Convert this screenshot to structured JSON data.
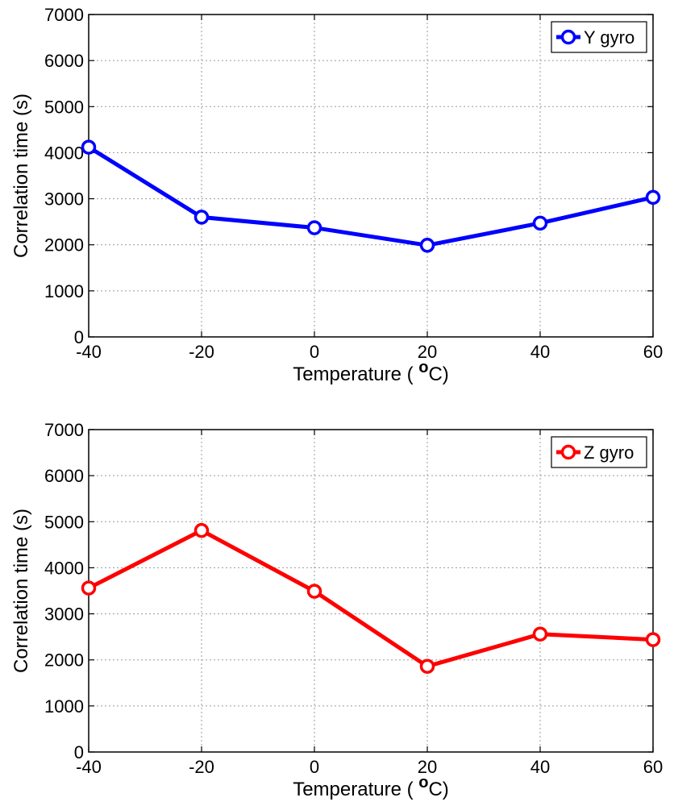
{
  "chart_data": [
    {
      "type": "line",
      "x": [
        -40,
        -20,
        0,
        20,
        40,
        60
      ],
      "series": [
        {
          "name": "Y gyro",
          "color": "#0000ff",
          "values": [
            4120,
            2600,
            2370,
            1990,
            2470,
            3030
          ]
        }
      ],
      "xlabel_prefix": "Temperature ( ",
      "xlabel_sup": "o",
      "xlabel_suffix": "C)",
      "ylabel": "Correlation time (s)",
      "xlim": [
        -40,
        60
      ],
      "ylim": [
        0,
        7000
      ],
      "xticks": [
        "-40",
        "-20",
        "0",
        "20",
        "40",
        "60"
      ],
      "yticks": [
        "0",
        "1000",
        "2000",
        "3000",
        "4000",
        "5000",
        "6000",
        "7000"
      ],
      "grid": true,
      "legend": "top-right"
    },
    {
      "type": "line",
      "x": [
        -40,
        -20,
        0,
        20,
        40,
        60
      ],
      "series": [
        {
          "name": "Z gyro",
          "color": "#ff0000",
          "values": [
            3560,
            4810,
            3490,
            1860,
            2560,
            2440
          ]
        }
      ],
      "xlabel_prefix": "Temperature ( ",
      "xlabel_sup": "o",
      "xlabel_suffix": "C)",
      "ylabel": "Correlation time (s)",
      "xlim": [
        -40,
        60
      ],
      "ylim": [
        0,
        7000
      ],
      "xticks": [
        "-40",
        "-20",
        "0",
        "20",
        "40",
        "60"
      ],
      "yticks": [
        "0",
        "1000",
        "2000",
        "3000",
        "4000",
        "5000",
        "6000",
        "7000"
      ],
      "grid": true,
      "legend": "top-right"
    }
  ]
}
